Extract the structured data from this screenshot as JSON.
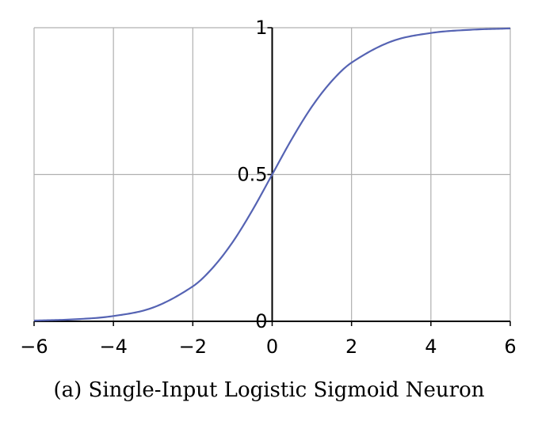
{
  "caption": "(a) Single-Input Logistic Sigmoid Neuron",
  "chart_data": {
    "type": "line",
    "title": "",
    "xlabel": "",
    "ylabel": "",
    "xlim": [
      -6,
      6
    ],
    "ylim": [
      0,
      1
    ],
    "x_ticks": [
      -6,
      -4,
      -2,
      0,
      2,
      4,
      6
    ],
    "x_tick_labels": [
      "−6",
      "−4",
      "−2",
      "0",
      "2",
      "4",
      "6"
    ],
    "y_ticks": [
      0,
      0.5,
      1
    ],
    "y_tick_labels": [
      "0",
      "0.5",
      "1"
    ],
    "grid": true,
    "series": [
      {
        "color": "#5563b3",
        "x": [
          -6,
          -5,
          -4,
          -3,
          -2,
          -1.5,
          -1,
          -0.5,
          0,
          0.5,
          1,
          1.5,
          2,
          3,
          4,
          5,
          6
        ],
        "y": [
          0.0025,
          0.0067,
          0.018,
          0.047,
          0.119,
          0.182,
          0.269,
          0.378,
          0.5,
          0.622,
          0.731,
          0.818,
          0.881,
          0.953,
          0.982,
          0.993,
          0.9975
        ]
      }
    ]
  }
}
